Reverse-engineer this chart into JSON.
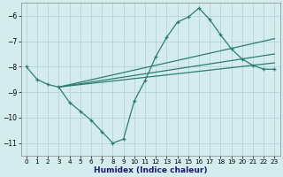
{
  "xlabel": "Humidex (Indice chaleur)",
  "bg_color": "#d4ecee",
  "line_color": "#2d7d6e",
  "grid_color": "#b0d0d4",
  "xlim": [
    -0.5,
    23.5
  ],
  "ylim": [
    -11.5,
    -5.5
  ],
  "yticks": [
    -11,
    -10,
    -9,
    -8,
    -7,
    -6
  ],
  "xticks": [
    0,
    1,
    2,
    3,
    4,
    5,
    6,
    7,
    8,
    9,
    10,
    11,
    12,
    13,
    14,
    15,
    16,
    17,
    18,
    19,
    20,
    21,
    22,
    23
  ],
  "series": {
    "curve": {
      "x": [
        0,
        1,
        2,
        3,
        4,
        5,
        6,
        7,
        8,
        9,
        10,
        11,
        12,
        13,
        14,
        15,
        16,
        17,
        18,
        19,
        20,
        21,
        22,
        23
      ],
      "y": [
        -8.0,
        -8.5,
        -8.7,
        -8.8,
        -9.4,
        -9.75,
        -10.1,
        -10.55,
        -11.0,
        -10.85,
        -9.35,
        -8.55,
        -7.6,
        -6.85,
        -6.25,
        -6.05,
        -5.7,
        -6.15,
        -6.75,
        -7.3,
        -7.7,
        -7.95,
        -8.1,
        -8.1
      ]
    },
    "line_top": {
      "x": [
        3,
        23
      ],
      "y": [
        -8.8,
        -6.9
      ]
    },
    "line_mid": {
      "x": [
        3,
        23
      ],
      "y": [
        -8.8,
        -7.5
      ]
    },
    "line_bot": {
      "x": [
        3,
        23
      ],
      "y": [
        -8.8,
        -7.85
      ]
    }
  }
}
